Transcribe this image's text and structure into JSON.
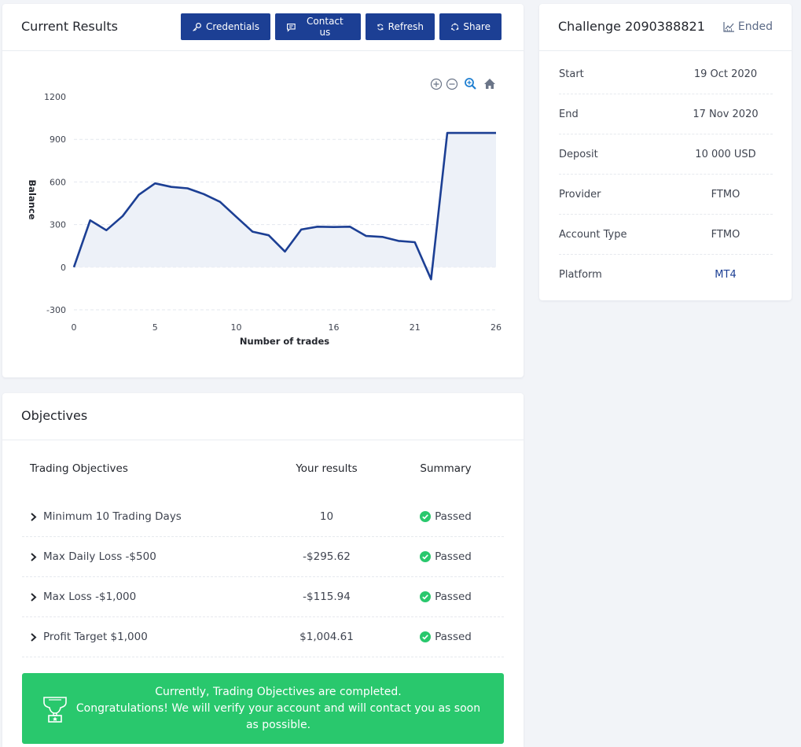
{
  "results": {
    "title": "Current Results",
    "buttons": [
      {
        "label": "Credentials",
        "icon": "key-icon"
      },
      {
        "label": "Contact us",
        "icon": "chat-icon"
      },
      {
        "label": "Refresh",
        "icon": "refresh-icon"
      },
      {
        "label": "Share",
        "icon": "share-icon"
      }
    ],
    "zoom_controls": [
      "zoom-in-icon",
      "zoom-out-icon",
      "magnify-icon",
      "home-icon"
    ]
  },
  "chart_data": {
    "type": "area",
    "xlabel": "Number of trades",
    "ylabel": "Balance",
    "xlim": [
      0,
      26
    ],
    "ylim": [
      -300,
      1200
    ],
    "x_ticks": [
      0,
      5,
      10,
      16,
      21,
      26
    ],
    "y_ticks": [
      1200,
      900,
      600,
      300,
      0,
      -300
    ],
    "grid": true,
    "line_color": "#1c3f94",
    "fill_color": "#edf1f8",
    "x": [
      0,
      1,
      2,
      3,
      4,
      5,
      6,
      7,
      8,
      9,
      10,
      11,
      12,
      13,
      14,
      15,
      16,
      17,
      18,
      19,
      20,
      21,
      22,
      23,
      24,
      25,
      26
    ],
    "values": [
      0,
      330,
      260,
      360,
      510,
      590,
      565,
      555,
      515,
      460,
      355,
      250,
      225,
      110,
      265,
      285,
      283,
      285,
      220,
      213,
      185,
      176,
      -85,
      945,
      945,
      945,
      945
    ]
  },
  "challenge": {
    "title": "Challenge 2090388821",
    "status": "Ended",
    "rows": [
      {
        "label": "Start",
        "value": "19 Oct 2020"
      },
      {
        "label": "End",
        "value": "17 Nov 2020"
      },
      {
        "label": "Deposit",
        "value": "10 000 USD"
      },
      {
        "label": "Provider",
        "value": "FTMO"
      },
      {
        "label": "Account Type",
        "value": "FTMO"
      },
      {
        "label": "Platform",
        "value": "MT4"
      }
    ]
  },
  "objectives": {
    "title": "Objectives",
    "headers": [
      "Trading Objectives",
      "Your results",
      "Summary"
    ],
    "rows": [
      {
        "name": "Minimum 10 Trading Days",
        "result": "10",
        "summary": "Passed"
      },
      {
        "name": "Max Daily Loss -$500",
        "result": "-$295.62",
        "summary": "Passed"
      },
      {
        "name": "Max Loss -$1,000",
        "result": "-$115.94",
        "summary": "Passed"
      },
      {
        "name": "Profit Target $1,000",
        "result": "$1,004.61",
        "summary": "Passed"
      }
    ],
    "banner_line1": "Currently, Trading Objectives are completed.",
    "banner_line2": "Congratulations! We will verify your account and will contact you as soon as possible.",
    "colors": {
      "passed": "#29c86d",
      "accent": "#1c3f94"
    }
  }
}
